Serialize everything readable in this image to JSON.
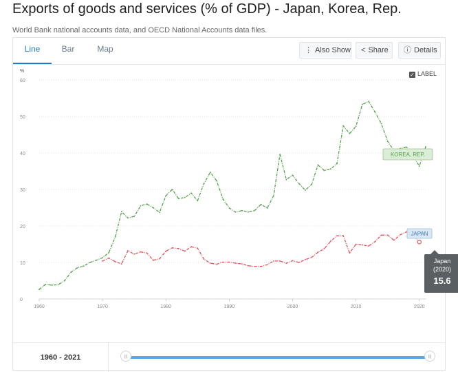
{
  "header": {
    "title": "Exports of goods and services (% of GDP) - Japan, Korea, Rep.",
    "subtitle": "World Bank national accounts data, and OECD National Accounts data files."
  },
  "tabs": [
    {
      "label": "Line",
      "active": true
    },
    {
      "label": "Bar",
      "active": false
    },
    {
      "label": "Map",
      "active": false
    }
  ],
  "toolbar": {
    "also_show": "Also Show",
    "share": "Share",
    "details": "Details"
  },
  "label_toggle": {
    "label": "LABEL",
    "checked": true
  },
  "tooltip": {
    "name": "Japan",
    "year": "(2020)",
    "value": "15.6"
  },
  "range": {
    "label": "1960 - 2021"
  },
  "colors": {
    "korea": "#55a14b",
    "japan": "#e3525a",
    "accent": "#1f7bc1",
    "slider": "#5aa9e6"
  },
  "chart_data": {
    "type": "line",
    "ylabel": "%",
    "ylim": [
      0,
      60
    ],
    "yticks": [
      0,
      10,
      20,
      30,
      40,
      50,
      60
    ],
    "xlim": [
      1960,
      2021
    ],
    "xticks": [
      1960,
      1970,
      1980,
      1990,
      2000,
      2010,
      2020
    ],
    "grid": "horizontal",
    "series": [
      {
        "name": "KOREA, REP.",
        "color": "#55a14b",
        "x": [
          1960,
          1961,
          1962,
          1963,
          1964,
          1965,
          1966,
          1967,
          1968,
          1969,
          1970,
          1971,
          1972,
          1973,
          1974,
          1975,
          1976,
          1977,
          1978,
          1979,
          1980,
          1981,
          1982,
          1983,
          1984,
          1985,
          1986,
          1987,
          1988,
          1989,
          1990,
          1991,
          1992,
          1993,
          1994,
          1995,
          1996,
          1997,
          1998,
          1999,
          2000,
          2001,
          2002,
          2003,
          2004,
          2005,
          2006,
          2007,
          2008,
          2009,
          2010,
          2011,
          2012,
          2013,
          2014,
          2015,
          2016,
          2017,
          2018,
          2019,
          2020,
          2021
        ],
        "values": [
          2.6,
          4.0,
          3.8,
          3.9,
          5.0,
          7.3,
          8.5,
          9.0,
          10.0,
          10.6,
          11.3,
          12.7,
          17.0,
          23.9,
          22.2,
          22.6,
          25.5,
          26.0,
          25.0,
          23.7,
          28.3,
          30.0,
          27.5,
          27.8,
          29.0,
          26.9,
          31.6,
          34.7,
          32.4,
          27.4,
          24.9,
          23.8,
          24.2,
          23.8,
          24.2,
          25.9,
          24.9,
          28.3,
          39.6,
          32.7,
          33.9,
          31.6,
          29.8,
          31.4,
          36.7,
          35.2,
          35.6,
          37.1,
          47.4,
          45.3,
          47.3,
          53.3,
          54.1,
          51.2,
          48.0,
          43.2,
          40.6,
          41.2,
          41.6,
          39.2,
          36.4,
          41.7
        ]
      },
      {
        "name": "JAPAN",
        "color": "#e3525a",
        "x": [
          1970,
          1971,
          1972,
          1973,
          1974,
          1975,
          1976,
          1977,
          1978,
          1979,
          1980,
          1981,
          1982,
          1983,
          1984,
          1985,
          1986,
          1987,
          1988,
          1989,
          1990,
          1991,
          1992,
          1993,
          1994,
          1995,
          1996,
          1997,
          1998,
          1999,
          2000,
          2001,
          2002,
          2003,
          2004,
          2005,
          2006,
          2007,
          2008,
          2009,
          2010,
          2011,
          2012,
          2013,
          2014,
          2015,
          2016,
          2017,
          2018,
          2019,
          2020
        ],
        "values": [
          10.4,
          11.2,
          10.2,
          9.6,
          13.2,
          12.3,
          12.9,
          12.6,
          10.6,
          11.0,
          13.1,
          14.0,
          13.8,
          13.1,
          14.3,
          13.9,
          10.9,
          9.8,
          9.5,
          10.1,
          10.1,
          9.8,
          9.6,
          9.1,
          8.9,
          8.9,
          9.4,
          10.4,
          10.4,
          9.8,
          10.5,
          10.0,
          10.8,
          11.4,
          12.8,
          13.8,
          15.8,
          17.3,
          17.3,
          12.6,
          15.0,
          14.8,
          14.5,
          15.7,
          17.5,
          17.5,
          16.1,
          17.6,
          18.4,
          17.4,
          15.6
        ]
      }
    ]
  }
}
